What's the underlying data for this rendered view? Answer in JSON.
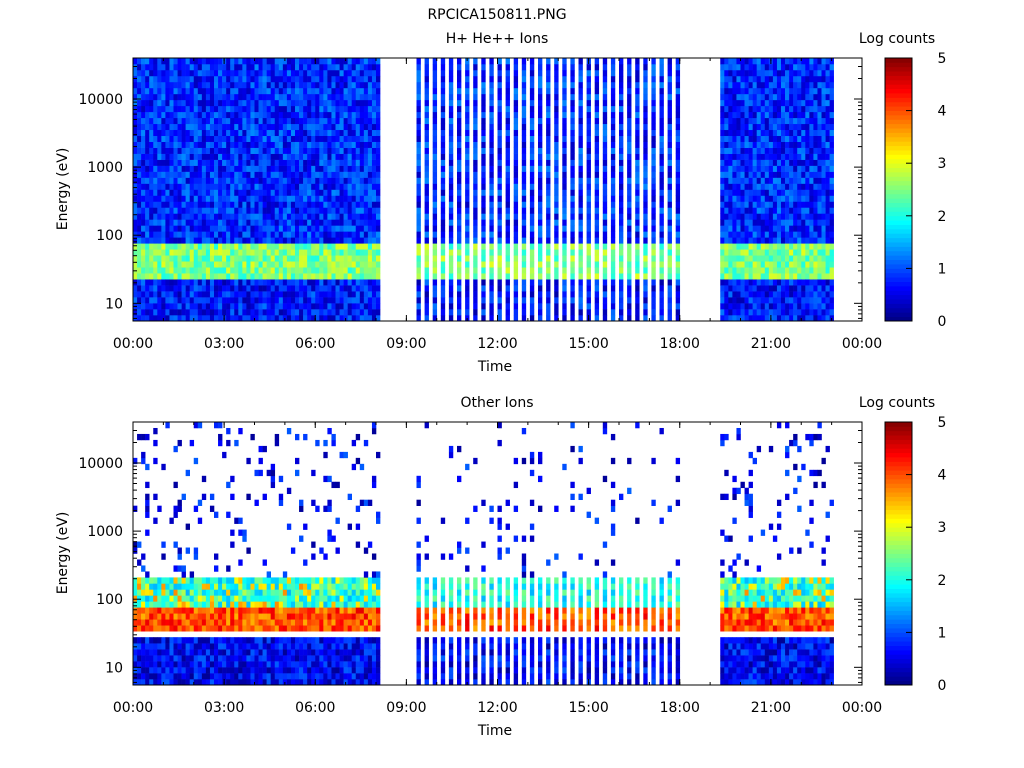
{
  "page_title": "RPCICA150811.PNG",
  "chart_data": [
    {
      "type": "heatmap",
      "title": "H+ He++ Ions",
      "xlabel": "Time",
      "ylabel": "Energy (eV)",
      "x_ticks": [
        "00:00",
        "03:00",
        "06:00",
        "09:00",
        "12:00",
        "15:00",
        "18:00",
        "21:00",
        "00:00"
      ],
      "x_range_hours": [
        0,
        24
      ],
      "y_scale": "log",
      "y_ticks": [
        "10",
        "100",
        "1000",
        "10000"
      ],
      "y_range": [
        5.5,
        40000
      ],
      "colorbar": {
        "label": "Log counts",
        "ticks": [
          "0",
          "1",
          "2",
          "3",
          "4",
          "5"
        ],
        "range": [
          0,
          5
        ]
      },
      "data_gaps_hours": [
        [
          8.2,
          9.3
        ],
        [
          18.1,
          19.3
        ],
        [
          23.1,
          24
        ]
      ],
      "bands": [
        {
          "energy_range": [
            25,
            70
          ],
          "log_counts": 2.5
        },
        {
          "energy_range": [
            6,
            25
          ],
          "log_counts": 0.7
        },
        {
          "energy_range": [
            70,
            40000
          ],
          "log_counts": 0.8
        }
      ]
    },
    {
      "type": "heatmap",
      "title": "Other Ions",
      "xlabel": "Time",
      "ylabel": "Energy (eV)",
      "x_ticks": [
        "00:00",
        "03:00",
        "06:00",
        "09:00",
        "12:00",
        "15:00",
        "18:00",
        "21:00",
        "00:00"
      ],
      "x_range_hours": [
        0,
        24
      ],
      "y_scale": "log",
      "y_ticks": [
        "10",
        "100",
        "1000",
        "10000"
      ],
      "y_range": [
        5.5,
        40000
      ],
      "colorbar": {
        "label": "Log counts",
        "ticks": [
          "0",
          "1",
          "2",
          "3",
          "4",
          "5"
        ],
        "range": [
          0,
          5
        ]
      },
      "data_gaps_hours": [
        [
          8.2,
          9.3
        ],
        [
          18.1,
          19.3
        ],
        [
          23.1,
          24
        ]
      ],
      "bands": [
        {
          "energy_range": [
            35,
            70
          ],
          "log_counts": 4.0
        },
        {
          "energy_range": [
            70,
            200
          ],
          "log_counts": 2.0
        },
        {
          "energy_range": [
            6,
            30
          ],
          "log_counts": 0.6
        },
        {
          "energy_range": [
            200,
            40000
          ],
          "log_counts": 0.6,
          "sparse": true
        }
      ]
    }
  ]
}
